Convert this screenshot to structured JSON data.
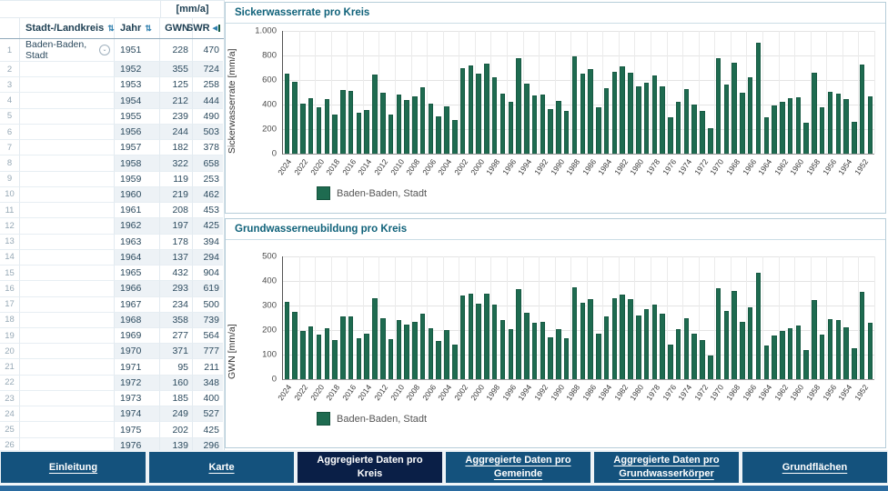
{
  "table": {
    "unit_header": "[mm/a]",
    "columns": {
      "kreis": "Stadt-/Landkreis",
      "jahr": "Jahr",
      "gwn": "GWN",
      "swr": "SWR"
    },
    "first_row_kreis": "Baden-Baden, Stadt",
    "rows": [
      {
        "jahr": 1951,
        "gwn": 228,
        "swr": 470
      },
      {
        "jahr": 1952,
        "gwn": 355,
        "swr": 724
      },
      {
        "jahr": 1953,
        "gwn": 125,
        "swr": 258
      },
      {
        "jahr": 1954,
        "gwn": 212,
        "swr": 444
      },
      {
        "jahr": 1955,
        "gwn": 239,
        "swr": 490
      },
      {
        "jahr": 1956,
        "gwn": 244,
        "swr": 503
      },
      {
        "jahr": 1957,
        "gwn": 182,
        "swr": 378
      },
      {
        "jahr": 1958,
        "gwn": 322,
        "swr": 658
      },
      {
        "jahr": 1959,
        "gwn": 119,
        "swr": 253
      },
      {
        "jahr": 1960,
        "gwn": 219,
        "swr": 462
      },
      {
        "jahr": 1961,
        "gwn": 208,
        "swr": 453
      },
      {
        "jahr": 1962,
        "gwn": 197,
        "swr": 425
      },
      {
        "jahr": 1963,
        "gwn": 178,
        "swr": 394
      },
      {
        "jahr": 1964,
        "gwn": 137,
        "swr": 294
      },
      {
        "jahr": 1965,
        "gwn": 432,
        "swr": 904
      },
      {
        "jahr": 1966,
        "gwn": 293,
        "swr": 619
      },
      {
        "jahr": 1967,
        "gwn": 234,
        "swr": 500
      },
      {
        "jahr": 1968,
        "gwn": 358,
        "swr": 739
      },
      {
        "jahr": 1969,
        "gwn": 277,
        "swr": 564
      },
      {
        "jahr": 1970,
        "gwn": 371,
        "swr": 777
      },
      {
        "jahr": 1971,
        "gwn": 95,
        "swr": 211
      },
      {
        "jahr": 1972,
        "gwn": 160,
        "swr": 348
      },
      {
        "jahr": 1973,
        "gwn": 185,
        "swr": 400
      },
      {
        "jahr": 1974,
        "gwn": 249,
        "swr": 527
      },
      {
        "jahr": 1975,
        "gwn": 202,
        "swr": 425
      },
      {
        "jahr": 1976,
        "gwn": 139,
        "swr": 296
      }
    ]
  },
  "chart_data": [
    {
      "type": "bar",
      "title": "Sickerwasserrate pro Kreis",
      "ylabel": "Sickerwasserrate [mm/a]",
      "ylim": [
        0,
        1000
      ],
      "ytick_labels": [
        "1.000",
        "800",
        "600",
        "400",
        "200",
        "0"
      ],
      "ytick_values": [
        1000,
        800,
        600,
        400,
        200,
        0
      ],
      "grid": true,
      "legend": "Baden-Baden, Stadt",
      "legend_position": "bottom-left",
      "x_note": "years descending left to right, labels every 2 years",
      "categories": [
        2024,
        2023,
        2022,
        2021,
        2020,
        2019,
        2018,
        2017,
        2016,
        2015,
        2014,
        2013,
        2012,
        2011,
        2010,
        2009,
        2008,
        2007,
        2006,
        2005,
        2004,
        2003,
        2002,
        2001,
        2000,
        1999,
        1998,
        1997,
        1996,
        1995,
        1994,
        1993,
        1992,
        1991,
        1990,
        1989,
        1988,
        1987,
        1986,
        1985,
        1984,
        1983,
        1982,
        1981,
        1980,
        1979,
        1978,
        1977,
        1976,
        1975,
        1974,
        1973,
        1972,
        1971,
        1970,
        1969,
        1968,
        1967,
        1966,
        1965,
        1964,
        1963,
        1962,
        1961,
        1960,
        1959,
        1958,
        1957,
        1956,
        1955,
        1954,
        1953,
        1952,
        1951
      ],
      "values": [
        650,
        585,
        410,
        450,
        375,
        445,
        320,
        515,
        510,
        330,
        355,
        645,
        500,
        320,
        480,
        440,
        470,
        540,
        410,
        305,
        385,
        275,
        700,
        720,
        650,
        735,
        620,
        487,
        423,
        780,
        568,
        477,
        485,
        360,
        430,
        345,
        790,
        650,
        690,
        380,
        530,
        670,
        710,
        660,
        545,
        580,
        635,
        550,
        296,
        425,
        527,
        400,
        348,
        211,
        777,
        564,
        739,
        500,
        619,
        904,
        294,
        394,
        425,
        453,
        462,
        253,
        658,
        378,
        503,
        490,
        444,
        258,
        724,
        470
      ]
    },
    {
      "type": "bar",
      "title": "Grundwasserneubildung pro Kreis",
      "ylabel": "GWN [mm/a]",
      "ylim": [
        0,
        500
      ],
      "ytick_labels": [
        "500",
        "400",
        "300",
        "200",
        "100",
        "0"
      ],
      "ytick_values": [
        500,
        400,
        300,
        200,
        100,
        0
      ],
      "grid": true,
      "legend": "Baden-Baden, Stadt",
      "legend_position": "bottom-left",
      "x_note": "years descending left to right, labels every 2 years",
      "categories": [
        2024,
        2023,
        2022,
        2021,
        2020,
        2019,
        2018,
        2017,
        2016,
        2015,
        2014,
        2013,
        2012,
        2011,
        2010,
        2009,
        2008,
        2007,
        2006,
        2005,
        2004,
        2003,
        2002,
        2001,
        2000,
        1999,
        1998,
        1997,
        1996,
        1995,
        1994,
        1993,
        1992,
        1991,
        1990,
        1989,
        1988,
        1987,
        1986,
        1985,
        1984,
        1983,
        1982,
        1981,
        1980,
        1979,
        1978,
        1977,
        1976,
        1975,
        1974,
        1973,
        1972,
        1971,
        1970,
        1969,
        1968,
        1967,
        1966,
        1965,
        1964,
        1963,
        1962,
        1961,
        1960,
        1959,
        1958,
        1957,
        1956,
        1955,
        1954,
        1953,
        1952,
        1951
      ],
      "values": [
        315,
        274,
        195,
        214,
        180,
        209,
        159,
        254,
        256,
        165,
        186,
        328,
        249,
        164,
        242,
        224,
        234,
        265,
        206,
        154,
        200,
        139,
        339,
        348,
        309,
        350,
        305,
        240,
        205,
        368,
        270,
        228,
        232,
        170,
        205,
        165,
        375,
        310,
        325,
        185,
        255,
        330,
        345,
        325,
        260,
        285,
        305,
        265,
        139,
        202,
        249,
        185,
        160,
        95,
        371,
        277,
        358,
        234,
        293,
        432,
        137,
        178,
        197,
        208,
        219,
        119,
        322,
        182,
        244,
        239,
        212,
        125,
        355,
        228
      ]
    }
  ],
  "nav": {
    "items": [
      {
        "label": "Einleitung",
        "active": false
      },
      {
        "label": "Karte",
        "active": false
      },
      {
        "label": "Aggregierte Daten pro Kreis",
        "active": true
      },
      {
        "label": "Aggregierte Daten pro Gemeinde",
        "active": false
      },
      {
        "label": "Aggregierte Daten pro Grundwasserkörper",
        "active": false
      },
      {
        "label": "Grundflächen",
        "active": false
      }
    ]
  },
  "colors": {
    "bar": "#1e6b50",
    "bar_border": "#175a43",
    "panel_title": "#10627a",
    "nav_button": "#14527d",
    "nav_button_active": "#0a1f47",
    "bottom_strip": "#2a6ba0",
    "row_shade": "#edf2f6"
  }
}
